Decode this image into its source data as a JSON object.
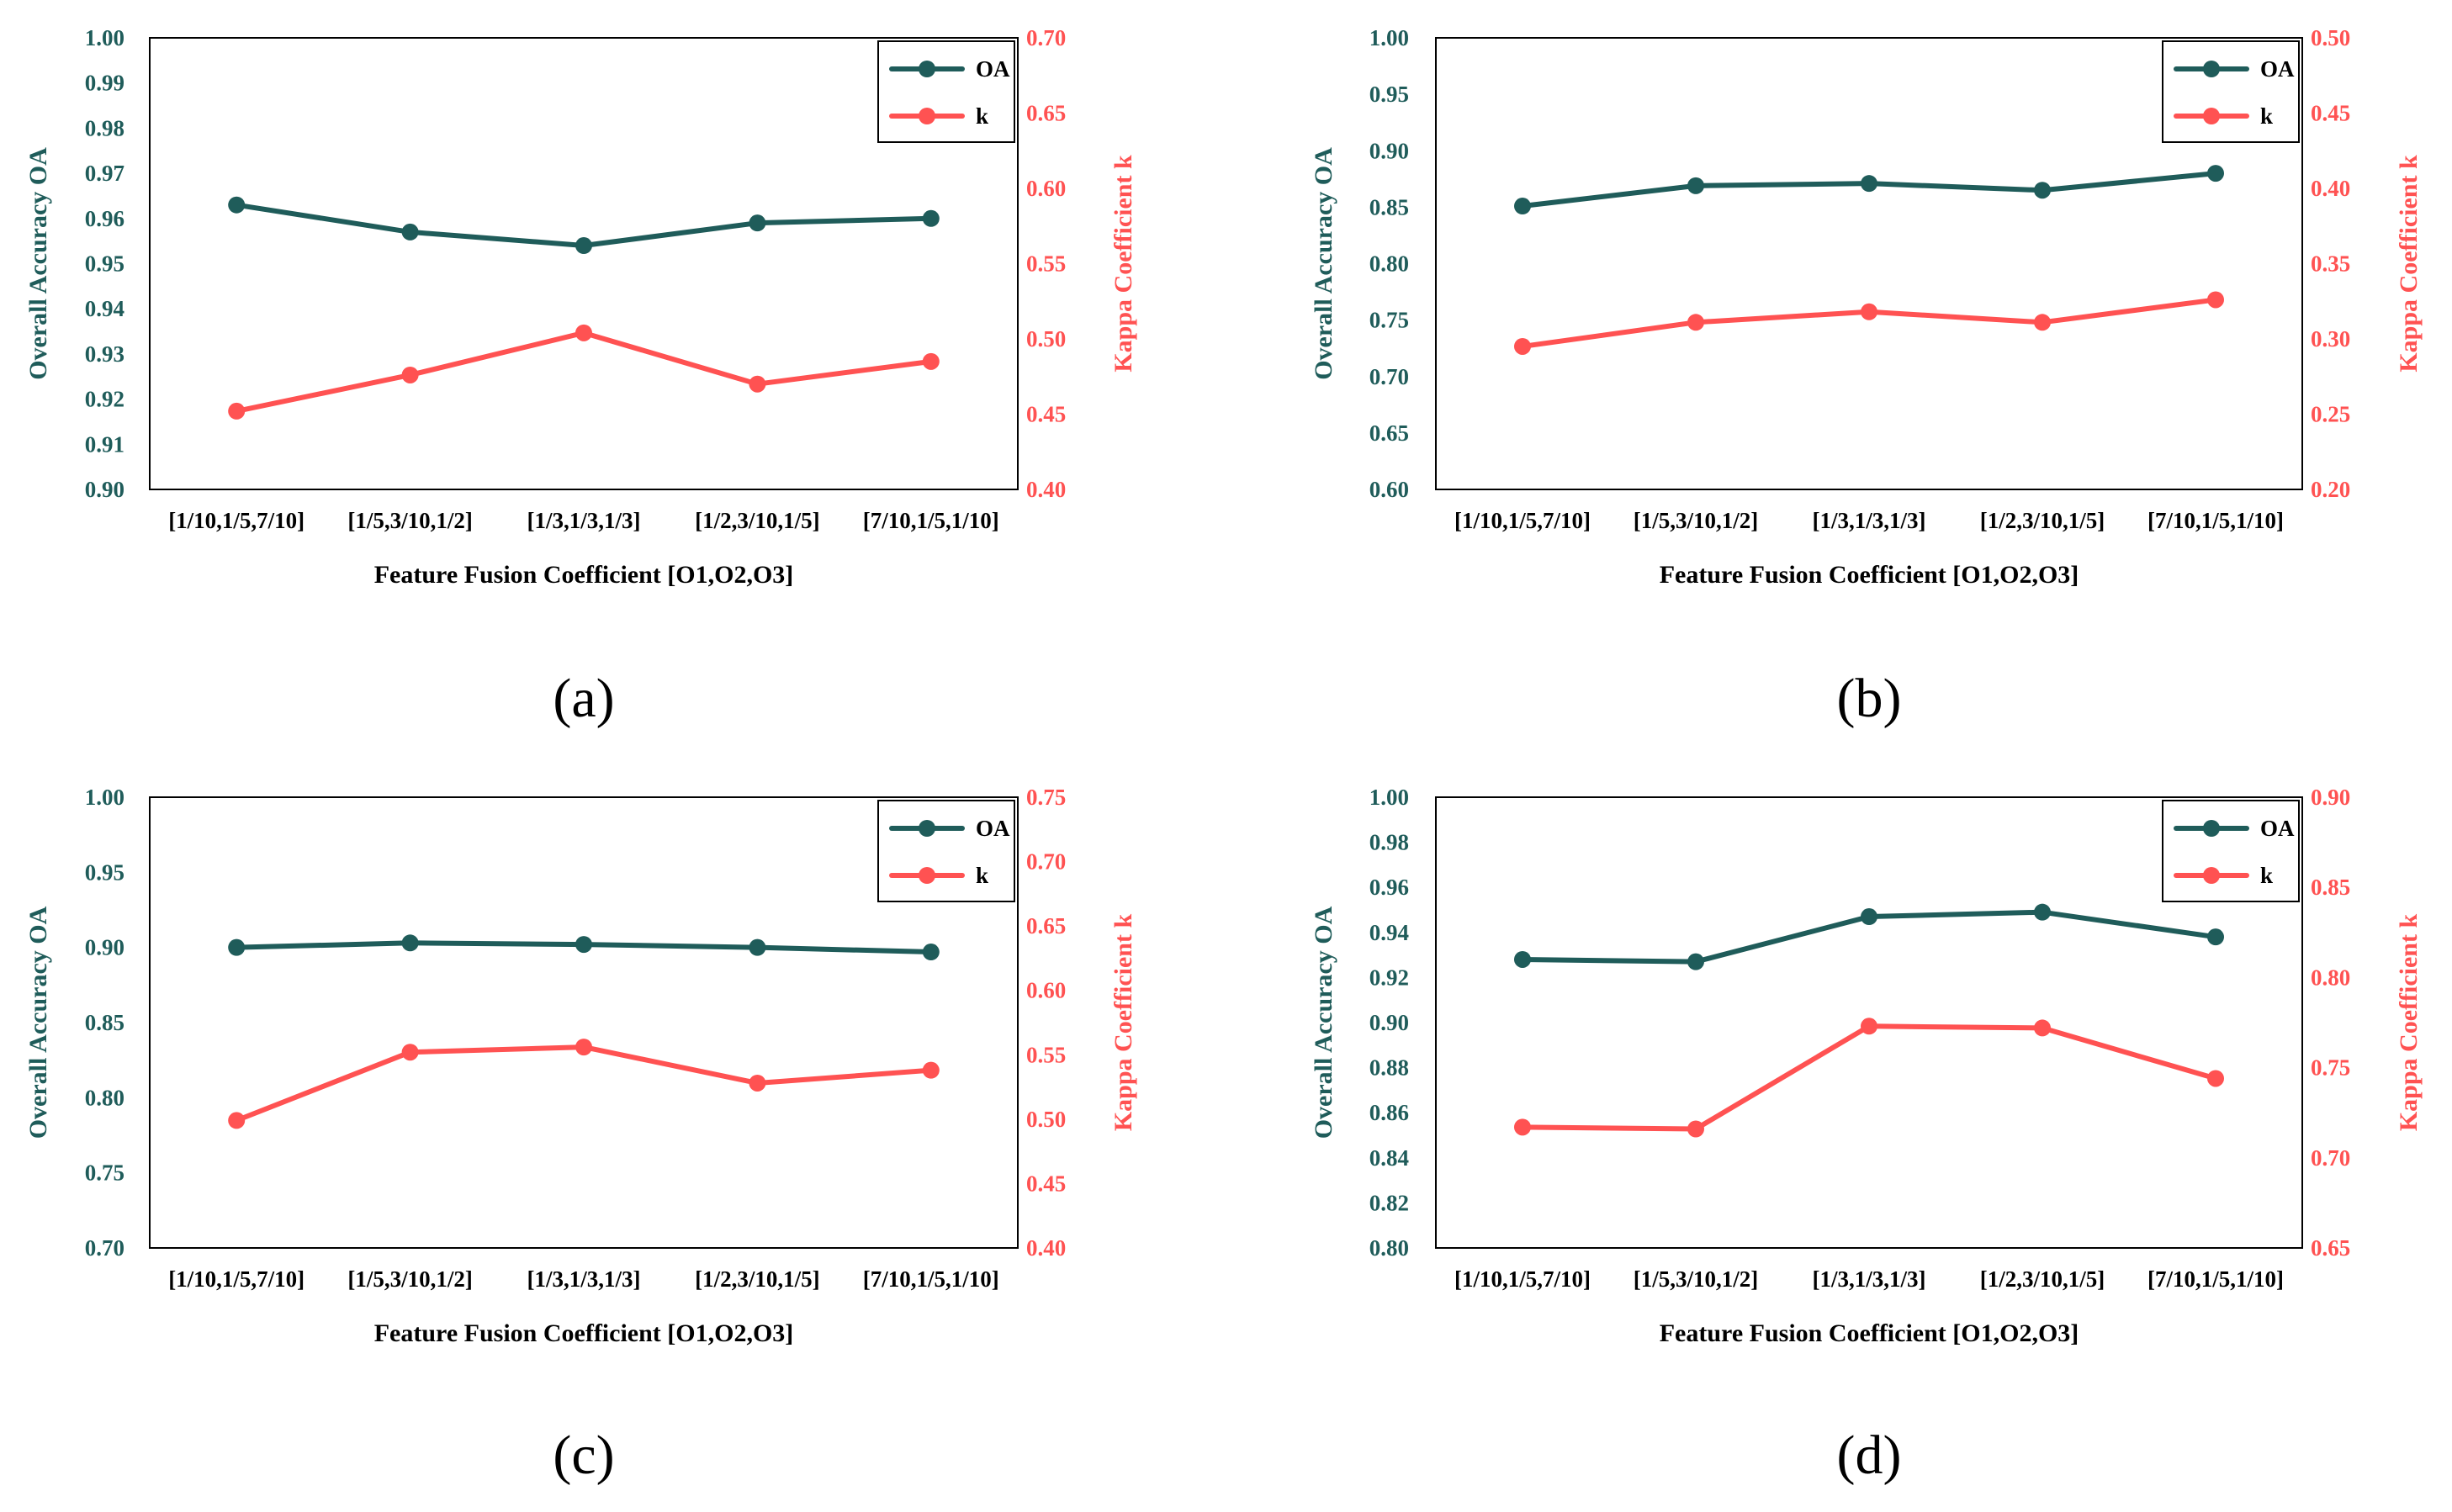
{
  "colors": {
    "oa": "#1f5c5a",
    "k": "#ff5252",
    "frame": "#000000"
  },
  "chart_data": [
    {
      "type": "line",
      "panel_label": "(a)",
      "categories": [
        "[1/10,1/5,7/10]",
        "[1/5,3/10,1/2]",
        "[1/3,1/3,1/3]",
        "[1/2,3/10,1/5]",
        "[7/10,1/5,1/10]"
      ],
      "xlabel": "Feature Fusion Coefficient [O1,O2,O3]",
      "ylabel": "Overall Accuracy OA",
      "y2label": "Kappa Coefficient k",
      "ylim": [
        0.9,
        1.0
      ],
      "y_ticks": [
        "0.90",
        "0.91",
        "0.92",
        "0.93",
        "0.94",
        "0.95",
        "0.96",
        "0.97",
        "0.98",
        "0.99",
        "1.00"
      ],
      "y2lim": [
        0.4,
        0.7
      ],
      "y2_ticks": [
        "0.40",
        "0.45",
        "0.50",
        "0.55",
        "0.60",
        "0.65",
        "0.70"
      ],
      "legend_position": "top-right",
      "series": [
        {
          "name": "OA",
          "axis": "left",
          "values": [
            0.963,
            0.957,
            0.954,
            0.959,
            0.96
          ]
        },
        {
          "name": "k",
          "axis": "right",
          "values": [
            0.452,
            0.476,
            0.504,
            0.47,
            0.485
          ]
        }
      ]
    },
    {
      "type": "line",
      "panel_label": "(b)",
      "categories": [
        "[1/10,1/5,7/10]",
        "[1/5,3/10,1/2]",
        "[1/3,1/3,1/3]",
        "[1/2,3/10,1/5]",
        "[7/10,1/5,1/10]"
      ],
      "xlabel": "Feature Fusion Coefficient [O1,O2,O3]",
      "ylabel": "Overall Accuracy OA",
      "y2label": "Kappa Coefficient k",
      "ylim": [
        0.6,
        1.0
      ],
      "y_ticks": [
        "0.60",
        "0.65",
        "0.70",
        "0.75",
        "0.80",
        "0.85",
        "0.90",
        "0.95",
        "1.00"
      ],
      "y2lim": [
        0.2,
        0.5
      ],
      "y2_ticks": [
        "0.20",
        "0.25",
        "0.30",
        "0.35",
        "0.40",
        "0.45",
        "0.50"
      ],
      "legend_position": "top-right",
      "series": [
        {
          "name": "OA",
          "axis": "left",
          "values": [
            0.851,
            0.869,
            0.871,
            0.865,
            0.88
          ]
        },
        {
          "name": "k",
          "axis": "right",
          "values": [
            0.295,
            0.311,
            0.318,
            0.311,
            0.326
          ]
        }
      ]
    },
    {
      "type": "line",
      "panel_label": "(c)",
      "categories": [
        "[1/10,1/5,7/10]",
        "[1/5,3/10,1/2]",
        "[1/3,1/3,1/3]",
        "[1/2,3/10,1/5]",
        "[7/10,1/5,1/10]"
      ],
      "xlabel": "Feature Fusion Coefficient [O1,O2,O3]",
      "ylabel": "Overall Accuracy OA",
      "y2label": "Kappa Coefficient k",
      "ylim": [
        0.7,
        1.0
      ],
      "y_ticks": [
        "0.70",
        "0.75",
        "0.80",
        "0.85",
        "0.90",
        "0.95",
        "1.00"
      ],
      "y2lim": [
        0.4,
        0.75
      ],
      "y2_ticks": [
        "0.40",
        "0.45",
        "0.50",
        "0.55",
        "0.60",
        "0.65",
        "0.70",
        "0.75"
      ],
      "legend_position": "top-right",
      "series": [
        {
          "name": "OA",
          "axis": "left",
          "values": [
            0.9,
            0.903,
            0.902,
            0.9,
            0.897
          ]
        },
        {
          "name": "k",
          "axis": "right",
          "values": [
            0.499,
            0.552,
            0.556,
            0.528,
            0.538
          ]
        }
      ]
    },
    {
      "type": "line",
      "panel_label": "(d)",
      "categories": [
        "[1/10,1/5,7/10]",
        "[1/5,3/10,1/2]",
        "[1/3,1/3,1/3]",
        "[1/2,3/10,1/5]",
        "[7/10,1/5,1/10]"
      ],
      "xlabel": "Feature Fusion Coefficient [O1,O2,O3]",
      "ylabel": "Overall Accuracy OA",
      "y2label": "Kappa Coefficient k",
      "ylim": [
        0.8,
        1.0
      ],
      "y_ticks": [
        "0.80",
        "0.82",
        "0.84",
        "0.86",
        "0.88",
        "0.90",
        "0.92",
        "0.94",
        "0.96",
        "0.98",
        "1.00"
      ],
      "y2lim": [
        0.65,
        0.9
      ],
      "y2_ticks": [
        "0.65",
        "0.70",
        "0.75",
        "0.80",
        "0.85",
        "0.90"
      ],
      "legend_position": "top-right",
      "series": [
        {
          "name": "OA",
          "axis": "left",
          "values": [
            0.928,
            0.927,
            0.947,
            0.949,
            0.938
          ]
        },
        {
          "name": "k",
          "axis": "right",
          "values": [
            0.717,
            0.716,
            0.773,
            0.772,
            0.744
          ]
        }
      ]
    }
  ]
}
